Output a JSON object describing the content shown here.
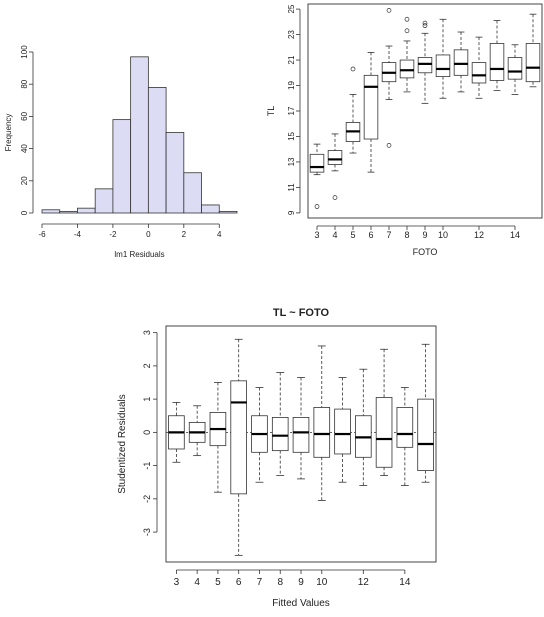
{
  "chart_data": [
    {
      "type": "bar",
      "subtype": "histogram",
      "xlabel": "lm1 Residuals",
      "ylabel": "Frequency",
      "bar_color": "#dcdcf5",
      "xlim": [
        -6,
        5
      ],
      "ylim": [
        0,
        100
      ],
      "xticks": [
        "-6",
        "-4",
        "-2",
        "0",
        "2",
        "4"
      ],
      "yticks": [
        "0",
        "20",
        "40",
        "60",
        "80",
        "100"
      ],
      "bins": [
        {
          "x0": -6.0,
          "x1": -5.0,
          "count": 2
        },
        {
          "x0": -5.0,
          "x1": -4.0,
          "count": 1
        },
        {
          "x0": -4.0,
          "x1": -3.0,
          "count": 3
        },
        {
          "x0": -3.0,
          "x1": -2.0,
          "count": 15
        },
        {
          "x0": -2.0,
          "x1": -1.0,
          "count": 58
        },
        {
          "x0": -1.0,
          "x1": 0.0,
          "count": 97
        },
        {
          "x0": 0.0,
          "x1": 1.0,
          "count": 78
        },
        {
          "x0": 1.0,
          "x1": 2.0,
          "count": 50
        },
        {
          "x0": 2.0,
          "x1": 3.0,
          "count": 25
        },
        {
          "x0": 3.0,
          "x1": 4.0,
          "count": 5
        },
        {
          "x0": 4.0,
          "x1": 5.0,
          "count": 1
        }
      ]
    },
    {
      "type": "boxplot",
      "xlabel": "FOTO",
      "ylabel": "TL",
      "ylim": [
        9,
        25
      ],
      "yticks": [
        "9",
        "11",
        "13",
        "15",
        "17",
        "19",
        "21",
        "23",
        "25"
      ],
      "xticks": [
        {
          "pos": 1,
          "label": "3"
        },
        {
          "pos": 2,
          "label": "4"
        },
        {
          "pos": 3,
          "label": "5"
        },
        {
          "pos": 4,
          "label": "6"
        },
        {
          "pos": 5,
          "label": "7"
        },
        {
          "pos": 6,
          "label": "8"
        },
        {
          "pos": 7,
          "label": "9"
        },
        {
          "pos": 8,
          "label": "10"
        },
        {
          "pos": 10,
          "label": "12"
        },
        {
          "pos": 12,
          "label": "14"
        }
      ],
      "boxes": [
        {
          "wlo": 12.0,
          "q1": 12.2,
          "med": 12.6,
          "q3": 13.6,
          "whi": 14.4,
          "out": [
            9.5
          ]
        },
        {
          "wlo": 12.3,
          "q1": 12.8,
          "med": 13.2,
          "q3": 13.9,
          "whi": 15.2,
          "out": [
            10.2
          ]
        },
        {
          "wlo": 13.7,
          "q1": 14.6,
          "med": 15.4,
          "q3": 16.1,
          "whi": 18.3,
          "out": [
            20.3
          ]
        },
        {
          "wlo": 12.2,
          "q1": 14.8,
          "med": 18.9,
          "q3": 19.8,
          "whi": 21.6,
          "out": []
        },
        {
          "wlo": 17.9,
          "q1": 19.3,
          "med": 20.0,
          "q3": 20.8,
          "whi": 22.1,
          "out": [
            24.9,
            14.3
          ]
        },
        {
          "wlo": 18.5,
          "q1": 19.6,
          "med": 20.2,
          "q3": 21.0,
          "whi": 22.5,
          "out": [
            23.3,
            24.2
          ]
        },
        {
          "wlo": 17.6,
          "q1": 20.0,
          "med": 20.7,
          "q3": 21.2,
          "whi": 23.1,
          "out": [
            23.7,
            23.9
          ]
        },
        {
          "wlo": 18.0,
          "q1": 19.7,
          "med": 20.3,
          "q3": 21.4,
          "whi": 24.2,
          "out": []
        },
        {
          "wlo": 18.5,
          "q1": 19.8,
          "med": 20.7,
          "q3": 21.8,
          "whi": 23.2,
          "out": []
        },
        {
          "wlo": 18.0,
          "q1": 19.2,
          "med": 19.8,
          "q3": 20.8,
          "whi": 22.8,
          "out": []
        },
        {
          "wlo": 18.6,
          "q1": 19.4,
          "med": 20.3,
          "q3": 22.3,
          "whi": 24.1,
          "out": []
        },
        {
          "wlo": 18.3,
          "q1": 19.5,
          "med": 20.1,
          "q3": 21.2,
          "whi": 22.2,
          "out": []
        },
        {
          "wlo": 18.9,
          "q1": 19.3,
          "med": 20.4,
          "q3": 22.3,
          "whi": 24.6,
          "out": []
        }
      ]
    },
    {
      "type": "boxplot",
      "title": "TL ~ FOTO",
      "xlabel": "Fitted Values",
      "ylabel": "Studentized Residuals",
      "ylim": [
        -3.9,
        3.2
      ],
      "yticks": [
        "-3",
        "-2",
        "-1",
        "0",
        "1",
        "2",
        "3"
      ],
      "reference_line_y": 0,
      "xticks": [
        {
          "pos": 1,
          "label": "3"
        },
        {
          "pos": 2,
          "label": "4"
        },
        {
          "pos": 3,
          "label": "5"
        },
        {
          "pos": 4,
          "label": "6"
        },
        {
          "pos": 5,
          "label": "7"
        },
        {
          "pos": 6,
          "label": "8"
        },
        {
          "pos": 7,
          "label": "9"
        },
        {
          "pos": 8,
          "label": "10"
        },
        {
          "pos": 10,
          "label": "12"
        },
        {
          "pos": 12,
          "label": "14"
        }
      ],
      "boxes": [
        {
          "wlo": -0.9,
          "q1": -0.5,
          "med": 0.0,
          "q3": 0.5,
          "whi": 0.9
        },
        {
          "wlo": -0.7,
          "q1": -0.3,
          "med": 0.0,
          "q3": 0.3,
          "whi": 0.8
        },
        {
          "wlo": -1.8,
          "q1": -0.4,
          "med": 0.1,
          "q3": 0.6,
          "whi": 1.5
        },
        {
          "wlo": -3.7,
          "q1": -1.85,
          "med": 0.9,
          "q3": 1.55,
          "whi": 2.8
        },
        {
          "wlo": -1.5,
          "q1": -0.6,
          "med": -0.05,
          "q3": 0.5,
          "whi": 1.35
        },
        {
          "wlo": -1.3,
          "q1": -0.55,
          "med": -0.1,
          "q3": 0.45,
          "whi": 1.8
        },
        {
          "wlo": -1.4,
          "q1": -0.6,
          "med": 0.0,
          "q3": 0.45,
          "whi": 1.65
        },
        {
          "wlo": -2.05,
          "q1": -0.75,
          "med": -0.05,
          "q3": 0.75,
          "whi": 2.6
        },
        {
          "wlo": -1.5,
          "q1": -0.65,
          "med": -0.05,
          "q3": 0.7,
          "whi": 1.65
        },
        {
          "wlo": -1.6,
          "q1": -0.75,
          "med": -0.15,
          "q3": 0.5,
          "whi": 1.9
        },
        {
          "wlo": -1.3,
          "q1": -1.05,
          "med": -0.2,
          "q3": 1.05,
          "whi": 2.5
        },
        {
          "wlo": -1.6,
          "q1": -0.45,
          "med": -0.05,
          "q3": 0.75,
          "whi": 1.35
        },
        {
          "wlo": -1.5,
          "q1": -1.15,
          "med": -0.35,
          "q3": 1.0,
          "whi": 2.65
        }
      ]
    }
  ]
}
